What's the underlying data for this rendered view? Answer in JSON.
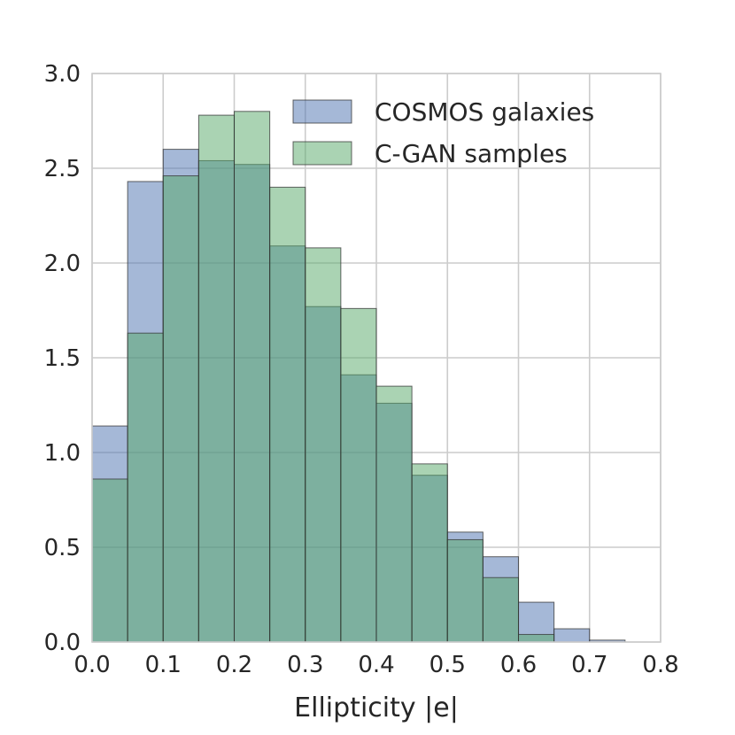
{
  "chart_data": {
    "type": "bar",
    "subtype": "overlapping-histogram",
    "title": "",
    "xlabel": "Ellipticity |e|",
    "ylabel": "",
    "xlim": [
      0.0,
      0.8
    ],
    "ylim": [
      0.0,
      3.0
    ],
    "xticks": [
      "0.0",
      "0.1",
      "0.2",
      "0.3",
      "0.4",
      "0.5",
      "0.6",
      "0.7",
      "0.8"
    ],
    "yticks": [
      "0.0",
      "0.5",
      "1.0",
      "1.5",
      "2.0",
      "2.5",
      "3.0"
    ],
    "grid": true,
    "legend_position": "top-right",
    "bin_edges": [
      0.0,
      0.05,
      0.1,
      0.15,
      0.2,
      0.25,
      0.3,
      0.35,
      0.4,
      0.45,
      0.5,
      0.55,
      0.6,
      0.65,
      0.7,
      0.75,
      0.8
    ],
    "series": [
      {
        "name": "COSMOS galaxies",
        "color": "#4c72b0",
        "values": [
          1.14,
          2.43,
          2.6,
          2.54,
          2.52,
          2.09,
          1.77,
          1.41,
          1.26,
          0.88,
          0.58,
          0.45,
          0.21,
          0.07,
          0.01,
          0.0
        ]
      },
      {
        "name": "C-GAN samples",
        "color": "#55a868",
        "values": [
          0.86,
          1.63,
          2.46,
          2.78,
          2.8,
          2.4,
          2.08,
          1.76,
          1.35,
          0.94,
          0.54,
          0.34,
          0.04,
          0.0,
          0.0,
          0.0
        ]
      }
    ]
  }
}
